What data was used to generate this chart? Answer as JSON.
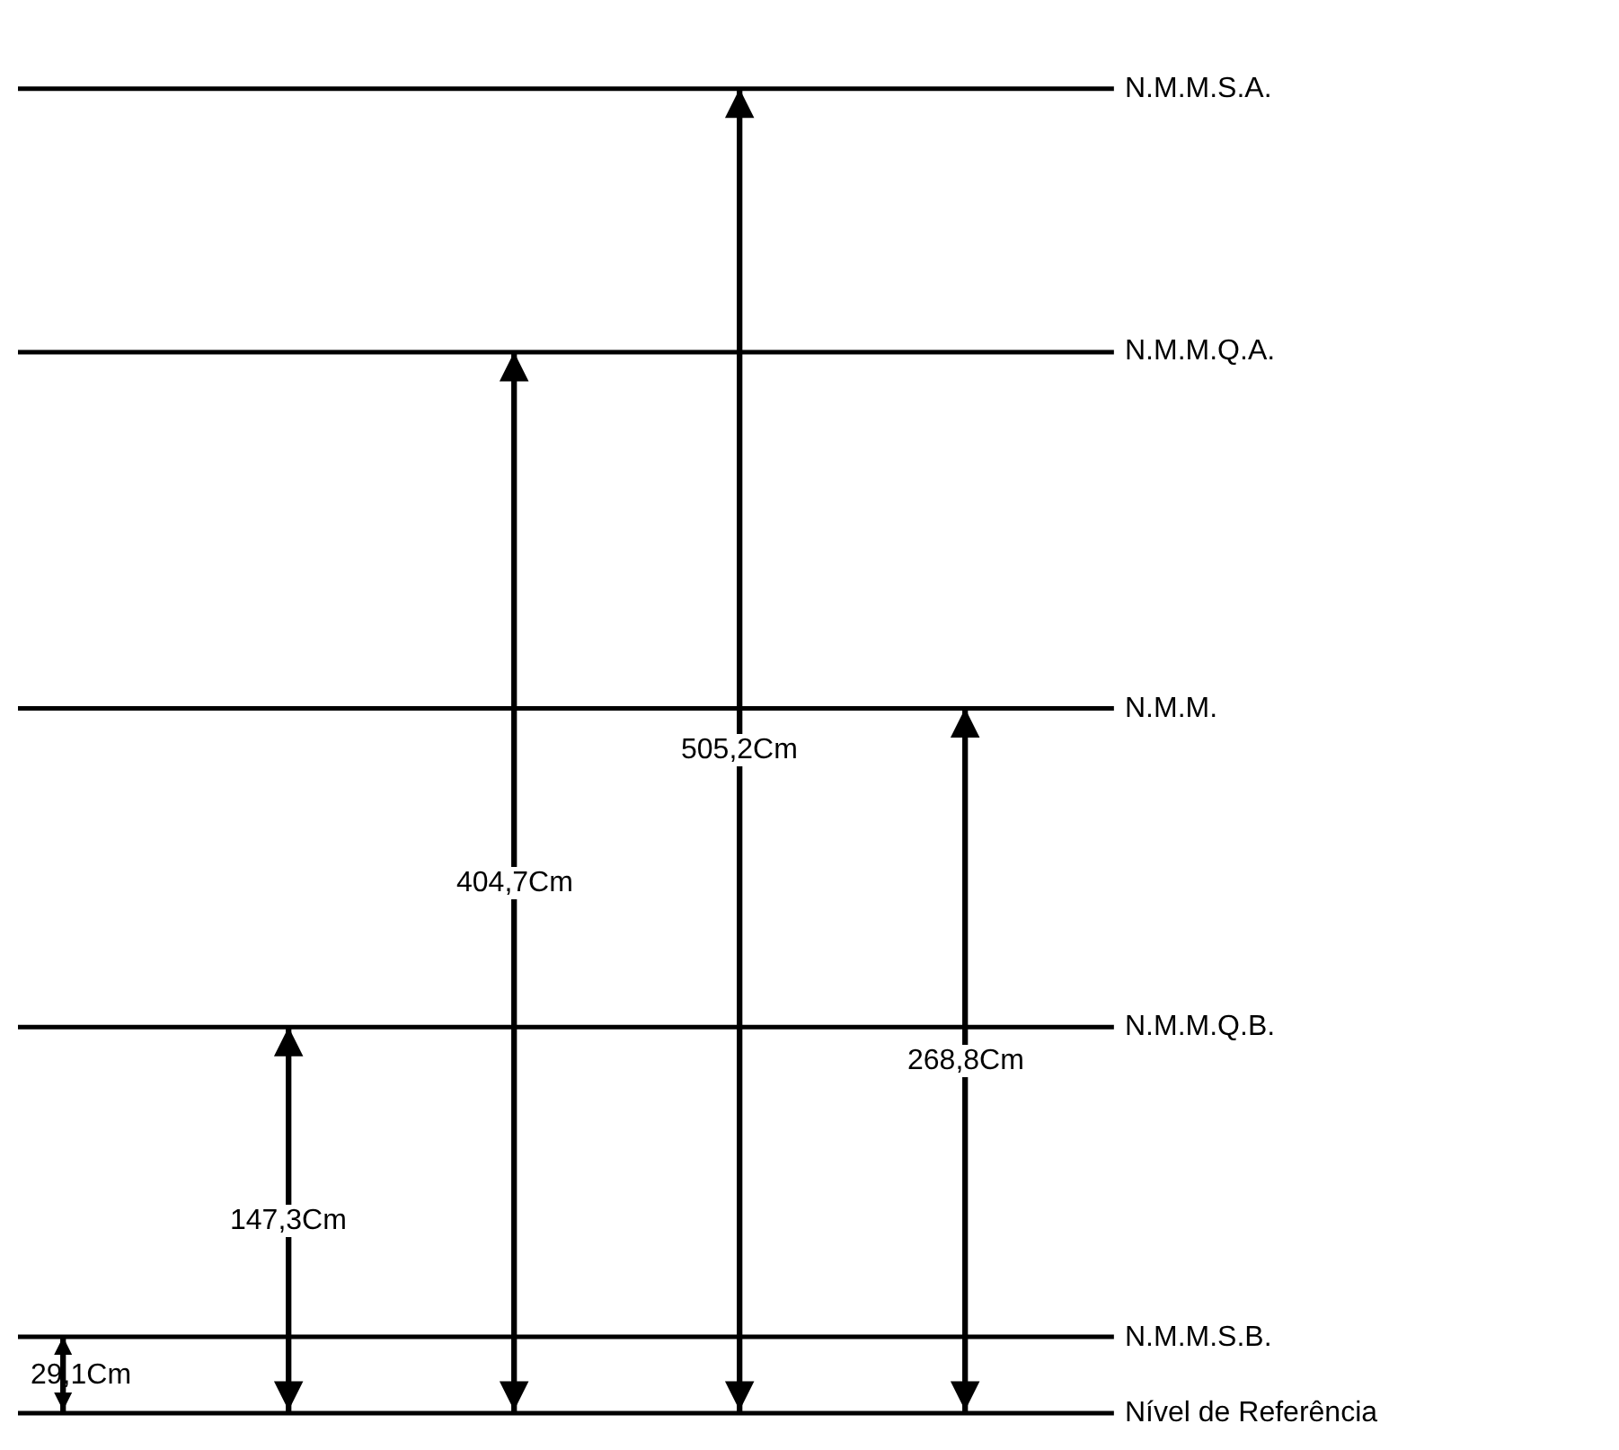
{
  "chart_data": {
    "type": "bar",
    "categories": [
      null,
      null,
      null,
      null,
      null
    ],
    "values": [
      29.1,
      147.3,
      404.7,
      505.2,
      268.8
    ],
    "value_labels": [
      "29,1Cm",
      "147,3Cm",
      "404,7Cm",
      "505,2Cm",
      "268,8Cm"
    ],
    "color": "#000000",
    "tick_labels": false,
    "ref_lines": [
      {
        "axis": "y",
        "value": 505.2,
        "label": "N.M.M.S.A."
      },
      {
        "axis": "y",
        "value": 404.7,
        "label": "N.M.M.Q.A."
      },
      {
        "axis": "y",
        "value": 268.8,
        "label": "N.M.M."
      },
      {
        "axis": "y",
        "value": 147.3,
        "label": "N.M.M.Q.B."
      },
      {
        "axis": "y",
        "value": 29.1,
        "label": "N.M.M.S.B."
      },
      {
        "axis": "y",
        "value": 0,
        "label": "Nível de Referência"
      }
    ]
  }
}
